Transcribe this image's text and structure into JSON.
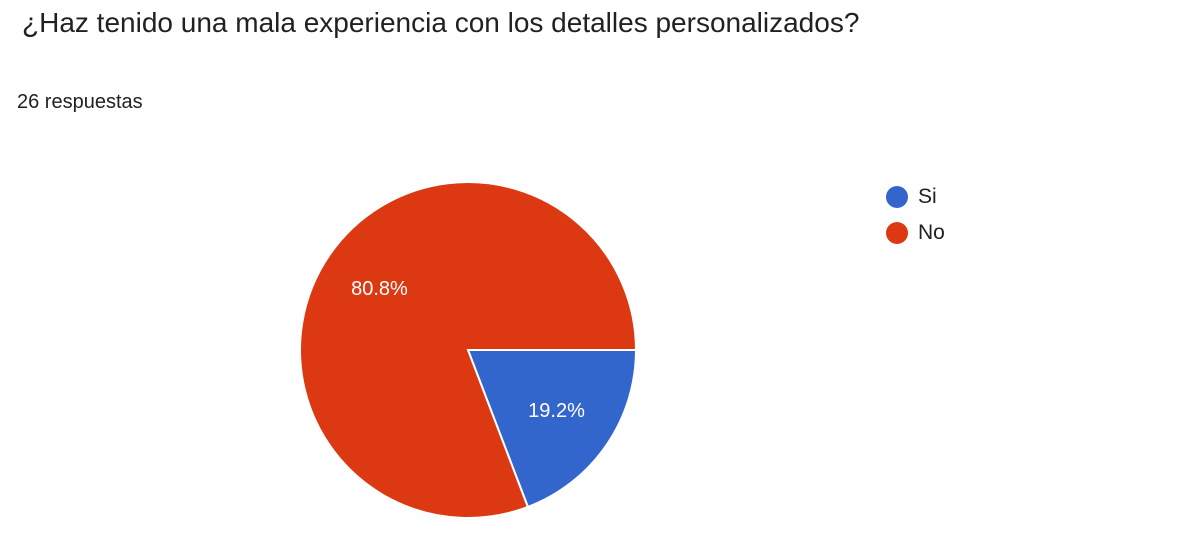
{
  "title": "¿Haz tenido una mala experiencia con los detalles personalizados?",
  "response_count": "26 respuestas",
  "colors": {
    "si": "#3366cc",
    "no": "#dc3912"
  },
  "chart_data": {
    "type": "pie",
    "title": "¿Haz tenido una mala experiencia con los detalles personalizados?",
    "categories": [
      "Si",
      "No"
    ],
    "values": [
      19.2,
      80.8
    ],
    "labels": [
      "19.2%",
      "80.8%"
    ],
    "colors": [
      "#3366cc",
      "#dc3912"
    ],
    "legend": "right"
  }
}
